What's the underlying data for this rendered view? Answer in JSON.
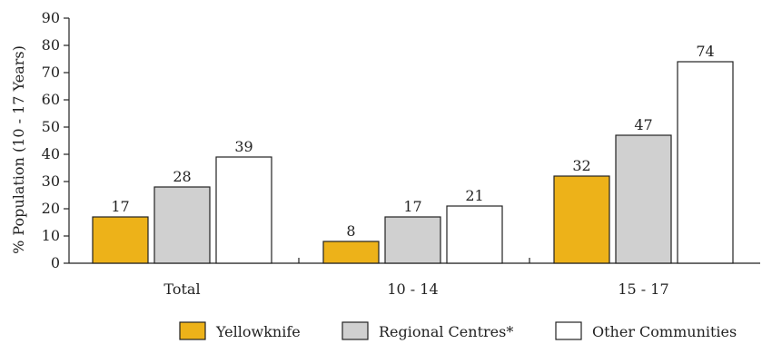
{
  "chart_data": {
    "type": "bar",
    "title": "",
    "xlabel": "",
    "ylabel": "% Population (10 - 17 Years)",
    "ylim": [
      0,
      90
    ],
    "yticks": [
      0,
      10,
      20,
      30,
      40,
      50,
      60,
      70,
      80,
      90
    ],
    "categories": [
      "Total",
      "10 - 14",
      "15 - 17"
    ],
    "series": [
      {
        "name": "Yellowknife",
        "values": [
          17,
          8,
          32
        ],
        "color": "#EDB219"
      },
      {
        "name": "Regional Centres*",
        "values": [
          28,
          17,
          47
        ],
        "color": "#D0D0D0"
      },
      {
        "name": "Other Communities",
        "values": [
          39,
          21,
          74
        ],
        "color": "#FFFFFF"
      }
    ],
    "legend_position": "bottom-right",
    "grid": false
  }
}
